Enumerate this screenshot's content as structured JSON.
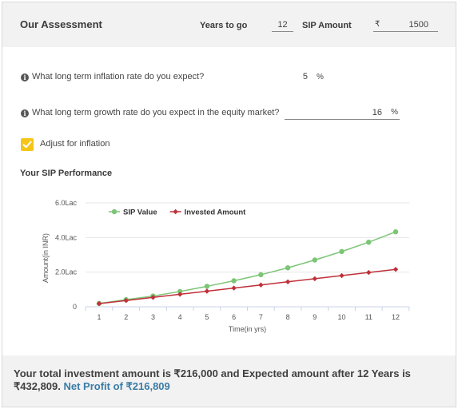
{
  "header": {
    "title": "Our Assessment",
    "years_label": "Years to go",
    "years_value": "12",
    "sip_label": "SIP Amount",
    "currency_symbol": "₹",
    "sip_value": "1500"
  },
  "questions": {
    "inflation": {
      "text": "What long term inflation rate do you expect?",
      "value": "5",
      "unit": "%"
    },
    "growth": {
      "text": "What long term growth rate do you expect in the equity market?",
      "value": "16",
      "unit": "%"
    }
  },
  "adjust_inflation": {
    "label": "Adjust for inflation",
    "checked": true,
    "color": "#f5c518"
  },
  "section_title": "Your SIP Performance",
  "chart_data": {
    "type": "line",
    "x": [
      1,
      2,
      3,
      4,
      5,
      6,
      7,
      8,
      9,
      10,
      11,
      12
    ],
    "x_tick_labels": [
      "1",
      "2",
      "3",
      "4",
      "5",
      "6",
      "7",
      "8",
      "9",
      "10",
      "11",
      "12"
    ],
    "xlabel": "Time(in yrs)",
    "ylabel": "Amount(in INR)",
    "ylim": [
      0,
      6
    ],
    "y_unit_note": "values in Lac",
    "y_ticks": [
      0,
      2,
      4,
      6
    ],
    "y_tick_labels": [
      "0",
      "2.0Lac",
      "4.0Lac",
      "6.0Lac"
    ],
    "legend_position": "top-left",
    "series": [
      {
        "name": "SIP Value",
        "color": "#7cc576",
        "marker": "circle",
        "values": [
          0.19,
          0.41,
          0.62,
          0.88,
          1.18,
          1.5,
          1.85,
          2.25,
          2.7,
          3.19,
          3.73,
          4.33
        ]
      },
      {
        "name": "Invested Amount",
        "color": "#c0303a",
        "marker": "diamond",
        "values": [
          0.18,
          0.36,
          0.54,
          0.72,
          0.9,
          1.08,
          1.26,
          1.44,
          1.62,
          1.8,
          1.98,
          2.16
        ]
      }
    ]
  },
  "footer": {
    "summary": "Your total investment amount is ₹216,000 and Expected amount after 12 Years is ₹432,809.",
    "profit": "Net Profit of ₹216,809"
  }
}
